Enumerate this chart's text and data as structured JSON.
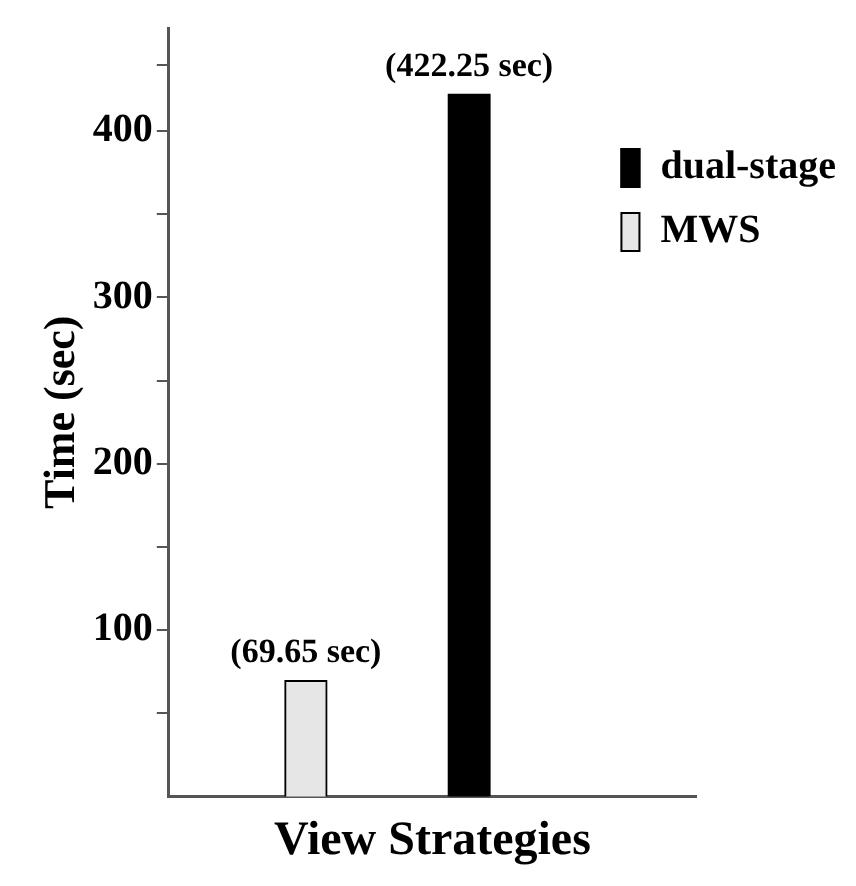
{
  "chart_data": {
    "type": "bar",
    "xlabel": "View Strategies",
    "ylabel": "Time (sec)",
    "categories": [
      null,
      null
    ],
    "series": [
      {
        "name": "dual-stage",
        "color": "#000000",
        "values": [
          null,
          422.25
        ],
        "value_labels": [
          null,
          "(422.25 sec)"
        ]
      },
      {
        "name": "MWS",
        "color": "#e6e6e6",
        "values": [
          69.65,
          null
        ],
        "value_labels": [
          "(69.65 sec)",
          null
        ]
      }
    ],
    "ylim": [
      0,
      462
    ],
    "yticks": [
      {
        "value": 50,
        "label": null
      },
      100,
      {
        "value": 150,
        "label": null
      },
      200,
      {
        "value": 250,
        "label": null
      },
      300,
      {
        "value": 350,
        "label": null
      },
      400,
      {
        "value": 440,
        "label": null
      }
    ],
    "grid": false,
    "legend": "top right"
  }
}
